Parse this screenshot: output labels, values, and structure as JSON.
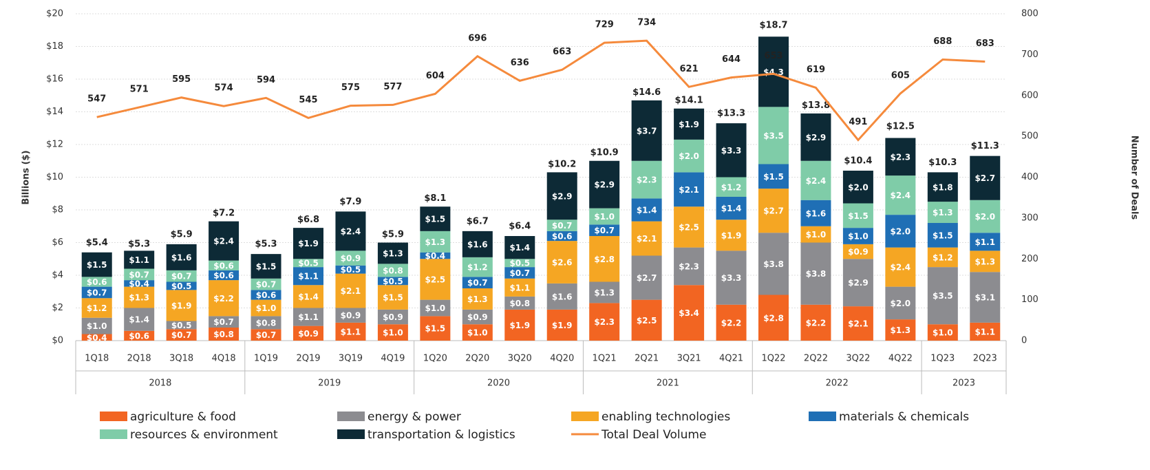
{
  "chart_data": {
    "type": "bar",
    "stacked": true,
    "categories": [
      "1Q18",
      "2Q18",
      "3Q18",
      "4Q18",
      "1Q19",
      "2Q19",
      "3Q19",
      "4Q19",
      "1Q20",
      "2Q20",
      "3Q20",
      "4Q20",
      "1Q21",
      "2Q21",
      "3Q21",
      "4Q21",
      "1Q22",
      "2Q22",
      "3Q22",
      "4Q22",
      "1Q23",
      "2Q23"
    ],
    "groups": [
      {
        "label": "2018",
        "count": 4
      },
      {
        "label": "2019",
        "count": 4
      },
      {
        "label": "2020",
        "count": 4
      },
      {
        "label": "2021",
        "count": 4
      },
      {
        "label": "2022",
        "count": 4
      },
      {
        "label": "2023",
        "count": 2
      }
    ],
    "ylabel": "Billions ($)",
    "y2label": "Number of Deals",
    "ylim": [
      0,
      20
    ],
    "yticks": [
      {
        "value": 0,
        "label": "$0"
      },
      {
        "value": 2,
        "label": "$2"
      },
      {
        "value": 4,
        "label": "$4"
      },
      {
        "value": 6,
        "label": "$6"
      },
      {
        "value": 8,
        "label": "$8"
      },
      {
        "value": 10,
        "label": "$10"
      },
      {
        "value": 12,
        "label": "$12"
      },
      {
        "value": 14,
        "label": "$14"
      },
      {
        "value": 16,
        "label": "$16"
      },
      {
        "value": 18,
        "label": "$18"
      },
      {
        "value": 20,
        "label": "$20"
      }
    ],
    "y2lim": [
      0,
      800
    ],
    "y2ticks": [
      0,
      100,
      200,
      300,
      400,
      500,
      600,
      700,
      800
    ],
    "grid": true,
    "series": [
      {
        "name": "agriculture & food",
        "color": "#f26522",
        "values": [
          0.4,
          0.6,
          0.7,
          0.8,
          0.7,
          0.9,
          1.1,
          1.0,
          1.5,
          1.0,
          1.9,
          1.9,
          2.3,
          2.5,
          3.4,
          2.2,
          2.8,
          2.2,
          2.1,
          1.3,
          1.0,
          1.1
        ],
        "value_labels": [
          "$0.4",
          "$0.6",
          "$0.7",
          "$0.8",
          "$0.7",
          "$0.9",
          "$1.1",
          "$1.0",
          "$1.5",
          "$1.0",
          "$1.9",
          "$1.9",
          "$2.3",
          "$2.5",
          "$3.4",
          "$2.2",
          "$2.8",
          "$2.2",
          "$2.1",
          "$1.3",
          "$1.0",
          "$1.1"
        ]
      },
      {
        "name": "energy & power",
        "color": "#8c8c90",
        "values": [
          1.0,
          1.4,
          0.5,
          0.7,
          0.8,
          1.1,
          0.9,
          0.9,
          1.0,
          0.9,
          0.8,
          1.6,
          1.3,
          2.7,
          2.3,
          3.3,
          3.8,
          3.8,
          2.9,
          2.0,
          3.5,
          3.1
        ],
        "value_labels": [
          "$1.0",
          "$1.4",
          "$0.5",
          "$0.7",
          "$0.8",
          "$1.1",
          "$0.9",
          "$0.9",
          "$1.0",
          "$0.9",
          "$0.8",
          "$1.6",
          "$1.3",
          "$2.7",
          "$2.3",
          "$3.3",
          "$3.8",
          "$3.8",
          "$2.9",
          "$2.0",
          "$3.5",
          "$3.1"
        ]
      },
      {
        "name": "enabling technologies",
        "color": "#f5a623",
        "values": [
          1.2,
          1.3,
          1.9,
          2.2,
          1.0,
          1.4,
          2.1,
          1.5,
          2.5,
          1.3,
          1.1,
          2.6,
          2.8,
          2.1,
          2.5,
          1.9,
          2.7,
          1.0,
          0.9,
          2.4,
          1.2,
          1.3
        ],
        "value_labels": [
          "$1.2",
          "$1.3",
          "$1.9",
          "$2.2",
          "$1.0",
          "$1.4",
          "$2.1",
          "$1.5",
          "$2.5",
          "$1.3",
          "$1.1",
          "$2.6",
          "$2.8",
          "$2.1",
          "$2.5",
          "$1.9",
          "$2.7",
          "$1.0",
          "$0.9",
          "$2.4",
          "$1.2",
          "$1.3"
        ]
      },
      {
        "name": "materials & chemicals",
        "color": "#1f6fb5",
        "values": [
          0.7,
          0.4,
          0.5,
          0.6,
          0.6,
          1.1,
          0.5,
          0.5,
          0.4,
          0.7,
          0.7,
          0.6,
          0.7,
          1.4,
          2.1,
          1.4,
          1.5,
          1.6,
          1.0,
          2.0,
          1.5,
          1.1
        ],
        "value_labels": [
          "$0.7",
          "$0.4",
          "$0.5",
          "$0.6",
          "$0.6",
          "$1.1",
          "$0.5",
          "$0.5",
          "$0.4",
          "$0.7",
          "$0.7",
          "$0.6",
          "$0.7",
          "$1.4",
          "$2.1",
          "$1.4",
          "$1.5",
          "$1.6",
          "$1.0",
          "$2.0",
          "$1.5",
          "$1.1"
        ]
      },
      {
        "name": "resources & environment",
        "color": "#7fcca8",
        "values": [
          0.6,
          0.7,
          0.7,
          0.6,
          0.7,
          0.5,
          0.9,
          0.8,
          1.3,
          1.2,
          0.5,
          0.7,
          1.0,
          2.3,
          2.0,
          1.2,
          3.5,
          2.4,
          1.5,
          2.4,
          1.3,
          2.0
        ],
        "value_labels": [
          "$0.6",
          "$0.7",
          "$0.7",
          "$0.6",
          "$0.7",
          "$0.5",
          "$0.9",
          "$0.8",
          "$1.3",
          "$1.2",
          "$0.5",
          "$0.7",
          "$1.0",
          "$2.3",
          "$2.0",
          "$1.2",
          "$3.5",
          "$2.4",
          "$1.5",
          "$2.4",
          "$1.3",
          "$2.0"
        ]
      },
      {
        "name": "transportation & logistics",
        "color": "#0d2a36",
        "values": [
          1.5,
          1.1,
          1.6,
          2.4,
          1.5,
          1.9,
          2.4,
          1.3,
          1.5,
          1.6,
          1.4,
          2.9,
          2.9,
          3.7,
          1.9,
          3.3,
          4.3,
          2.9,
          2.0,
          2.3,
          1.8,
          2.7
        ],
        "value_labels": [
          "$1.5",
          "$1.1",
          "$1.6",
          "$2.4",
          "$1.5",
          "$1.9",
          "$2.4",
          "$1.3",
          "$1.5",
          "$1.6",
          "$1.4",
          "$2.9",
          "$2.9",
          "$3.7",
          "$1.9",
          "$3.3",
          "$4.3",
          "$2.9",
          "$2.0",
          "$2.3",
          "$1.8",
          "$2.7"
        ]
      },
      {
        "name": "Total Deal Volume",
        "type": "line",
        "axis": "y2",
        "color": "#f58a3c",
        "values": [
          547,
          571,
          595,
          574,
          594,
          545,
          575,
          577,
          604,
          696,
          636,
          663,
          729,
          734,
          621,
          644,
          653,
          619,
          491,
          605,
          688,
          683
        ]
      }
    ],
    "totals": {
      "values": [
        5.4,
        5.3,
        5.9,
        7.2,
        5.3,
        6.8,
        7.9,
        5.9,
        8.1,
        6.7,
        6.4,
        10.2,
        10.9,
        14.6,
        14.1,
        13.3,
        18.7,
        13.8,
        10.4,
        12.5,
        10.3,
        11.3
      ],
      "value_labels": [
        "$5.4",
        "$5.3",
        "$5.9",
        "$7.2",
        "$5.3",
        "$6.8",
        "$7.9",
        "$5.9",
        "$8.1",
        "$6.7",
        "$6.4",
        "$10.2",
        "$10.9",
        "$14.6",
        "$14.1",
        "$13.3",
        "$18.7",
        "$13.8",
        "$10.4",
        "$12.5",
        "$10.3",
        "$11.3"
      ]
    }
  }
}
